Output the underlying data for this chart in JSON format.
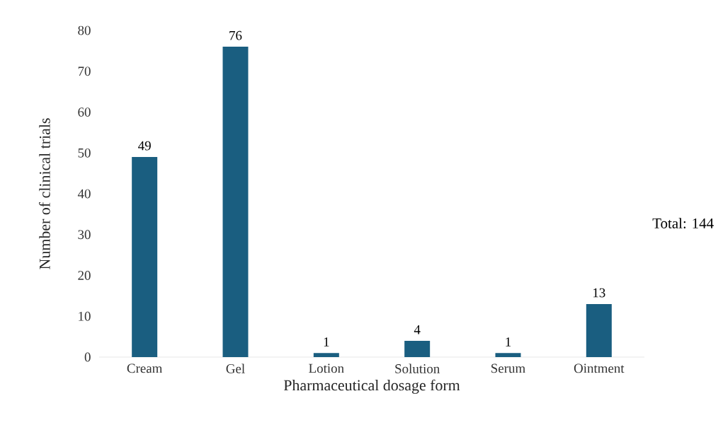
{
  "chart_data": {
    "type": "bar",
    "xlabel": "Pharmaceutical dosage form",
    "ylabel": "Number of clinical trials",
    "categories": [
      "Cream",
      "Gel",
      "Lotion",
      "Solution",
      "Serum",
      "Ointment"
    ],
    "values": [
      49,
      76,
      1,
      4,
      1,
      13
    ],
    "color": "#1a5e80",
    "ylim": [
      0,
      80
    ],
    "yticks": [
      0,
      10,
      20,
      30,
      40,
      50,
      60,
      70,
      80
    ],
    "data_labels": true,
    "grid": false,
    "annotations": [
      "Total: 144"
    ]
  }
}
